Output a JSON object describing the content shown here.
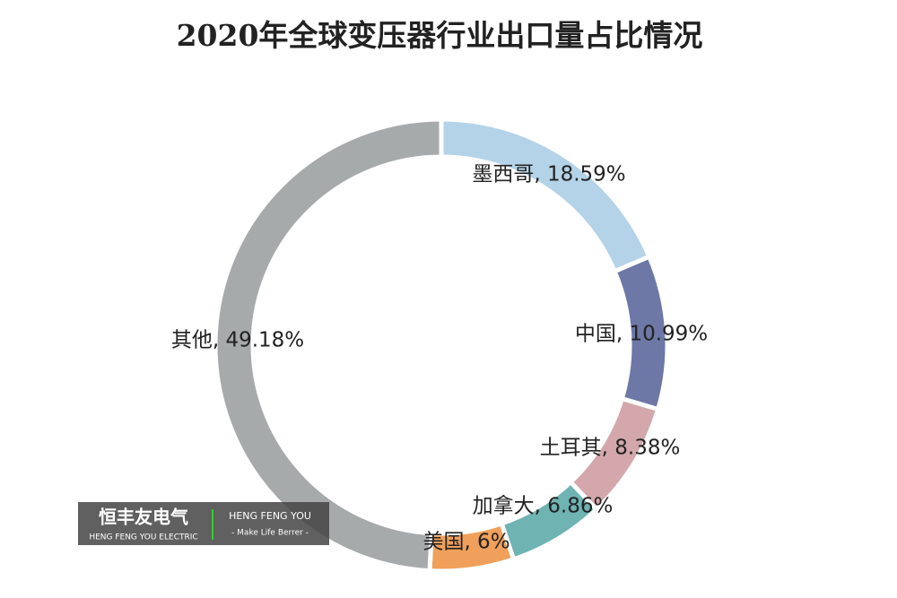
{
  "chart_data": {
    "type": "pie",
    "title": "2020年全球变压器行业出口量占比情况",
    "values": [
      18.59,
      10.99,
      8.38,
      6.86,
      6,
      49.18
    ],
    "value_labels": [
      "墨西哥, 18.59%",
      "中国, 10.99%",
      "土耳其, 8.38%",
      "加拿大, 6.86%",
      "美国, 6%",
      "其他, 49.18%"
    ],
    "colors": [
      "#b4d3e8",
      "#6d78a6",
      "#d3a7ab",
      "#6fb3b3",
      "#f0a05a",
      "#a7aaab"
    ]
  },
  "watermark": {
    "brand": "恒丰友电气",
    "brand_en": "HENG FENG YOU ELECTRIC",
    "name": "HENG FENG YOU",
    "slogan": "- Make Life Berrer -"
  }
}
